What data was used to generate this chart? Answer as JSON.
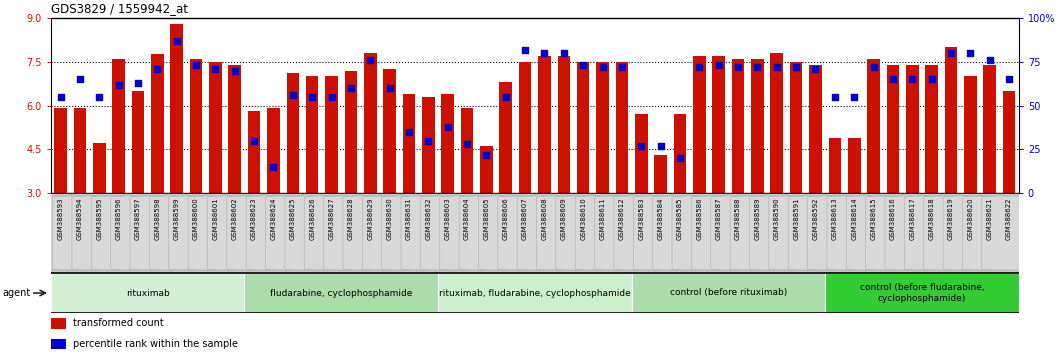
{
  "title": "GDS3829 / 1559942_at",
  "samples": [
    "GSM388593",
    "GSM388594",
    "GSM388595",
    "GSM388596",
    "GSM388597",
    "GSM388598",
    "GSM388599",
    "GSM388600",
    "GSM388601",
    "GSM388602",
    "GSM388623",
    "GSM388624",
    "GSM388625",
    "GSM388626",
    "GSM388627",
    "GSM388628",
    "GSM388629",
    "GSM388630",
    "GSM388631",
    "GSM388632",
    "GSM388603",
    "GSM388604",
    "GSM388605",
    "GSM388606",
    "GSM388607",
    "GSM388608",
    "GSM388609",
    "GSM388610",
    "GSM388611",
    "GSM388612",
    "GSM388583",
    "GSM388584",
    "GSM388585",
    "GSM388586",
    "GSM388587",
    "GSM388588",
    "GSM388589",
    "GSM388590",
    "GSM388591",
    "GSM388592",
    "GSM388613",
    "GSM388614",
    "GSM388615",
    "GSM388616",
    "GSM388617",
    "GSM388618",
    "GSM388619",
    "GSM388620",
    "GSM388621",
    "GSM388622"
  ],
  "bar_values": [
    5.9,
    5.9,
    4.7,
    7.6,
    6.5,
    7.75,
    8.8,
    7.6,
    7.5,
    7.4,
    5.8,
    5.9,
    7.1,
    7.0,
    7.0,
    7.2,
    7.8,
    7.25,
    6.4,
    6.3,
    6.4,
    5.9,
    4.6,
    6.8,
    7.5,
    7.7,
    7.7,
    7.5,
    7.5,
    7.5,
    5.7,
    4.3,
    5.7,
    7.7,
    7.7,
    7.6,
    7.6,
    7.8,
    7.5,
    7.4,
    4.9,
    4.9,
    7.6,
    7.4,
    7.4,
    7.4,
    8.0,
    7.0,
    7.4,
    6.5
  ],
  "percentile_values": [
    55,
    65,
    55,
    62,
    63,
    71,
    87,
    73,
    71,
    70,
    30,
    15,
    56,
    55,
    55,
    60,
    76,
    60,
    35,
    30,
    38,
    28,
    22,
    55,
    82,
    80,
    80,
    73,
    72,
    72,
    27,
    27,
    20,
    72,
    73,
    72,
    72,
    72,
    72,
    71,
    55,
    55,
    72,
    65,
    65,
    65,
    80,
    80,
    76,
    65
  ],
  "groups": [
    {
      "label": "rituximab",
      "start": 0,
      "end": 10,
      "color": "#d4f0d4"
    },
    {
      "label": "fludarabine, cyclophosphamide",
      "start": 10,
      "end": 20,
      "color": "#aaddaa"
    },
    {
      "label": "rituximab, fludarabine, cyclophosphamide",
      "start": 20,
      "end": 30,
      "color": "#ccf0cc"
    },
    {
      "label": "control (before rituximab)",
      "start": 30,
      "end": 40,
      "color": "#aaddaa"
    },
    {
      "label": "control (before fludarabine,\ncyclophosphamide)",
      "start": 40,
      "end": 50,
      "color": "#33cc33"
    }
  ],
  "bar_color": "#cc1100",
  "percentile_color": "#0000cc",
  "ylim_left": [
    3,
    9
  ],
  "ylim_right": [
    0,
    100
  ],
  "yticks_left": [
    3,
    4.5,
    6.0,
    7.5,
    9
  ],
  "yticks_right": [
    0,
    25,
    50,
    75,
    100
  ],
  "hlines": [
    4.5,
    6.0,
    7.5
  ],
  "bar_width": 0.65
}
